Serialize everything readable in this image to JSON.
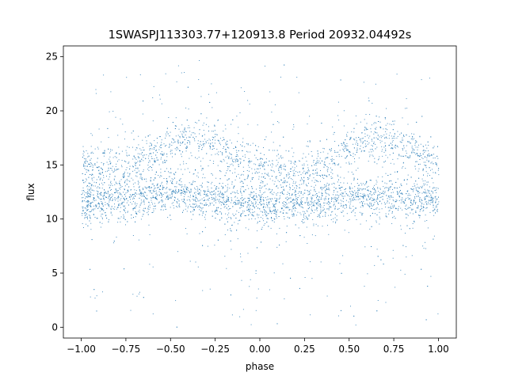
{
  "chart_data": {
    "type": "scatter",
    "title": "1SWASPJ113303.77+120913.8 Period 20932.04492s",
    "xlabel": "phase",
    "ylabel": "flux",
    "xlim": [
      -1.1,
      1.1
    ],
    "ylim": [
      -1.0,
      26.0
    ],
    "xticks": [
      -1.0,
      -0.75,
      -0.5,
      -0.25,
      0.0,
      0.25,
      0.5,
      0.75,
      1.0
    ],
    "xtick_labels": [
      "−1.00",
      "−0.75",
      "−0.50",
      "−0.25",
      "0.00",
      "0.25",
      "0.50",
      "0.75",
      "1.00"
    ],
    "yticks": [
      0,
      5,
      10,
      15,
      20,
      25
    ],
    "ytick_labels": [
      "0",
      "5",
      "10",
      "15",
      "20",
      "25"
    ],
    "grid": false,
    "marker_color": "#1f77b4",
    "series": [
      {
        "style": "dense points",
        "x_range": [
          -1.0,
          1.0
        ],
        "lower_band_center": [
          {
            "x": -1.0,
            "y": 11.5
          },
          {
            "x": -0.75,
            "y": 12.0
          },
          {
            "x": -0.5,
            "y": 12.5
          },
          {
            "x": -0.25,
            "y": 12.0
          },
          {
            "x": 0.0,
            "y": 11.2
          },
          {
            "x": 0.25,
            "y": 11.5
          },
          {
            "x": 0.5,
            "y": 12.0
          },
          {
            "x": 0.75,
            "y": 12.0
          },
          {
            "x": 1.0,
            "y": 11.5
          }
        ],
        "upper_band_center": [
          {
            "x": -1.0,
            "y": 15.0
          },
          {
            "x": -0.75,
            "y": 14.8
          },
          {
            "x": -0.6,
            "y": 16.0
          },
          {
            "x": -0.4,
            "y": 17.5
          },
          {
            "x": -0.25,
            "y": 17.0
          },
          {
            "x": -0.1,
            "y": 15.5
          },
          {
            "x": 0.0,
            "y": 14.5
          },
          {
            "x": 0.25,
            "y": 14.2
          },
          {
            "x": 0.4,
            "y": 15.5
          },
          {
            "x": 0.6,
            "y": 17.5
          },
          {
            "x": 0.75,
            "y": 17.0
          },
          {
            "x": 0.9,
            "y": 16.0
          },
          {
            "x": 1.0,
            "y": 15.0
          }
        ],
        "y_extent": [
          0.0,
          25.0
        ]
      }
    ]
  }
}
